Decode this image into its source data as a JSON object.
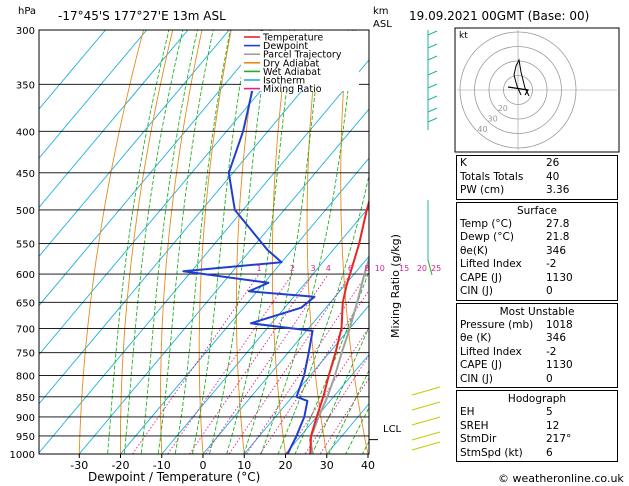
{
  "header": {
    "hpa_label": "hPa",
    "location": "-17°45'S  177°27'E  13m  ASL",
    "km_label": "km",
    "asl_label": "ASL",
    "datetime": "19.09.2021  00GMT  (Base: 00)"
  },
  "legend": [
    {
      "name": "Temperature",
      "color": "#e8251f"
    },
    {
      "name": "Dewpoint",
      "color": "#1f3fcf"
    },
    {
      "name": "Parcel Trajectory",
      "color": "#a0a0a0"
    },
    {
      "name": "Dry Adiabat",
      "color": "#e88a1a"
    },
    {
      "name": "Wet Adiabat",
      "color": "#22b022"
    },
    {
      "name": "Isotherm",
      "color": "#1fb0e0"
    },
    {
      "name": "Mixing Ratio",
      "color": "#e0208f"
    }
  ],
  "chart_data": {
    "type": "skew-t",
    "xlabel": "Dewpoint / Temperature (°C)",
    "y2label": "Mixing Ratio (g/kg)",
    "pressure_ticks": [
      300,
      350,
      400,
      450,
      500,
      550,
      600,
      650,
      700,
      750,
      800,
      850,
      900,
      950,
      1000
    ],
    "temp_ticks": [
      -30,
      -20,
      -10,
      0,
      10,
      20,
      30,
      40
    ],
    "xlim": [
      -40,
      40
    ],
    "plim": [
      1000,
      300
    ],
    "mixing_ratio_labels": [
      "1",
      "2",
      "3",
      "4",
      "6",
      "8",
      "10",
      "15",
      "20",
      "25"
    ],
    "mixing_ratio_values": [
      1,
      2,
      3,
      4,
      6,
      8,
      10,
      15,
      20,
      25
    ],
    "lcl_label": "LCL",
    "lcl_pressure": 960,
    "temperature_profile": [
      {
        "p": 1013,
        "t": 27.8
      },
      {
        "p": 1000,
        "t": 26.0
      },
      {
        "p": 950,
        "t": 22.5
      },
      {
        "p": 900,
        "t": 20.0
      },
      {
        "p": 850,
        "t": 17.5
      },
      {
        "p": 800,
        "t": 14.5
      },
      {
        "p": 750,
        "t": 11.5
      },
      {
        "p": 700,
        "t": 8.0
      },
      {
        "p": 650,
        "t": 3.0
      },
      {
        "p": 620,
        "t": 0.5
      },
      {
        "p": 600,
        "t": -1.0
      },
      {
        "p": 550,
        "t": -5.0
      },
      {
        "p": 500,
        "t": -10.0
      },
      {
        "p": 450,
        "t": -15.0
      },
      {
        "p": 400,
        "t": -22.0
      },
      {
        "p": 350,
        "t": -31.0
      },
      {
        "p": 300,
        "t": -41.0
      }
    ],
    "dewpoint_profile": [
      {
        "p": 1013,
        "t": 21.8
      },
      {
        "p": 1000,
        "t": 20.5
      },
      {
        "p": 950,
        "t": 19.0
      },
      {
        "p": 900,
        "t": 17.0
      },
      {
        "p": 860,
        "t": 14.5
      },
      {
        "p": 850,
        "t": 11.0
      },
      {
        "p": 800,
        "t": 8.5
      },
      {
        "p": 750,
        "t": 5.0
      },
      {
        "p": 705,
        "t": 1.5
      },
      {
        "p": 690,
        "t": -15.0
      },
      {
        "p": 660,
        "t": -6.0
      },
      {
        "p": 640,
        "t": -5.0
      },
      {
        "p": 630,
        "t": -22.0
      },
      {
        "p": 625,
        "t": -21.0
      },
      {
        "p": 615,
        "t": -19.0
      },
      {
        "p": 595,
        "t": -42.0
      },
      {
        "p": 580,
        "t": -20.0
      },
      {
        "p": 560,
        "t": -26.0
      },
      {
        "p": 500,
        "t": -42.0
      },
      {
        "p": 450,
        "t": -51.0
      },
      {
        "p": 400,
        "t": -56.0
      },
      {
        "p": 350,
        "t": -63.0
      },
      {
        "p": 300,
        "t": -72.0
      }
    ],
    "parcel_profile": [
      {
        "p": 1013,
        "t": 27.8
      },
      {
        "p": 960,
        "t": 23.0
      },
      {
        "p": 900,
        "t": 20.5
      },
      {
        "p": 850,
        "t": 18.5
      },
      {
        "p": 800,
        "t": 16.0
      },
      {
        "p": 750,
        "t": 13.0
      },
      {
        "p": 700,
        "t": 10.0
      },
      {
        "p": 650,
        "t": 6.5
      },
      {
        "p": 600,
        "t": 2.5
      },
      {
        "p": 550,
        "t": -1.5
      },
      {
        "p": 500,
        "t": -6.5
      },
      {
        "p": 450,
        "t": -12.0
      },
      {
        "p": 400,
        "t": -18.5
      },
      {
        "p": 375,
        "t": -22.0
      }
    ]
  },
  "hodograph": {
    "label": "kt",
    "ring_labels": [
      "20",
      "30",
      "40"
    ]
  },
  "indices": [
    {
      "label": "K",
      "value": "26"
    },
    {
      "label": "Totals Totals",
      "value": "40"
    },
    {
      "label": "PW (cm)",
      "value": "3.36"
    }
  ],
  "surface": {
    "title": "Surface",
    "rows": [
      {
        "label": "Temp (°C)",
        "value": "27.8"
      },
      {
        "label": "Dewp (°C)",
        "value": "21.8"
      },
      {
        "label": "θe(K)",
        "value": "346"
      },
      {
        "label": "Lifted Index",
        "value": "-2"
      },
      {
        "label": "CAPE (J)",
        "value": "1130"
      },
      {
        "label": "CIN (J)",
        "value": "0"
      }
    ]
  },
  "most_unstable": {
    "title": "Most Unstable",
    "rows": [
      {
        "label": "Pressure (mb)",
        "value": "1018"
      },
      {
        "label": "θe (K)",
        "value": "346"
      },
      {
        "label": "Lifted Index",
        "value": "-2"
      },
      {
        "label": "CAPE (J)",
        "value": "1130"
      },
      {
        "label": "CIN (J)",
        "value": "0"
      }
    ]
  },
  "hodograph_table": {
    "title": "Hodograph",
    "rows": [
      {
        "label": "EH",
        "value": "5"
      },
      {
        "label": "SREH",
        "value": "12"
      },
      {
        "label": "StmDir",
        "value": "217°"
      },
      {
        "label": "StmSpd (kt)",
        "value": "6"
      }
    ]
  },
  "copyright": "© weatheronline.co.uk"
}
